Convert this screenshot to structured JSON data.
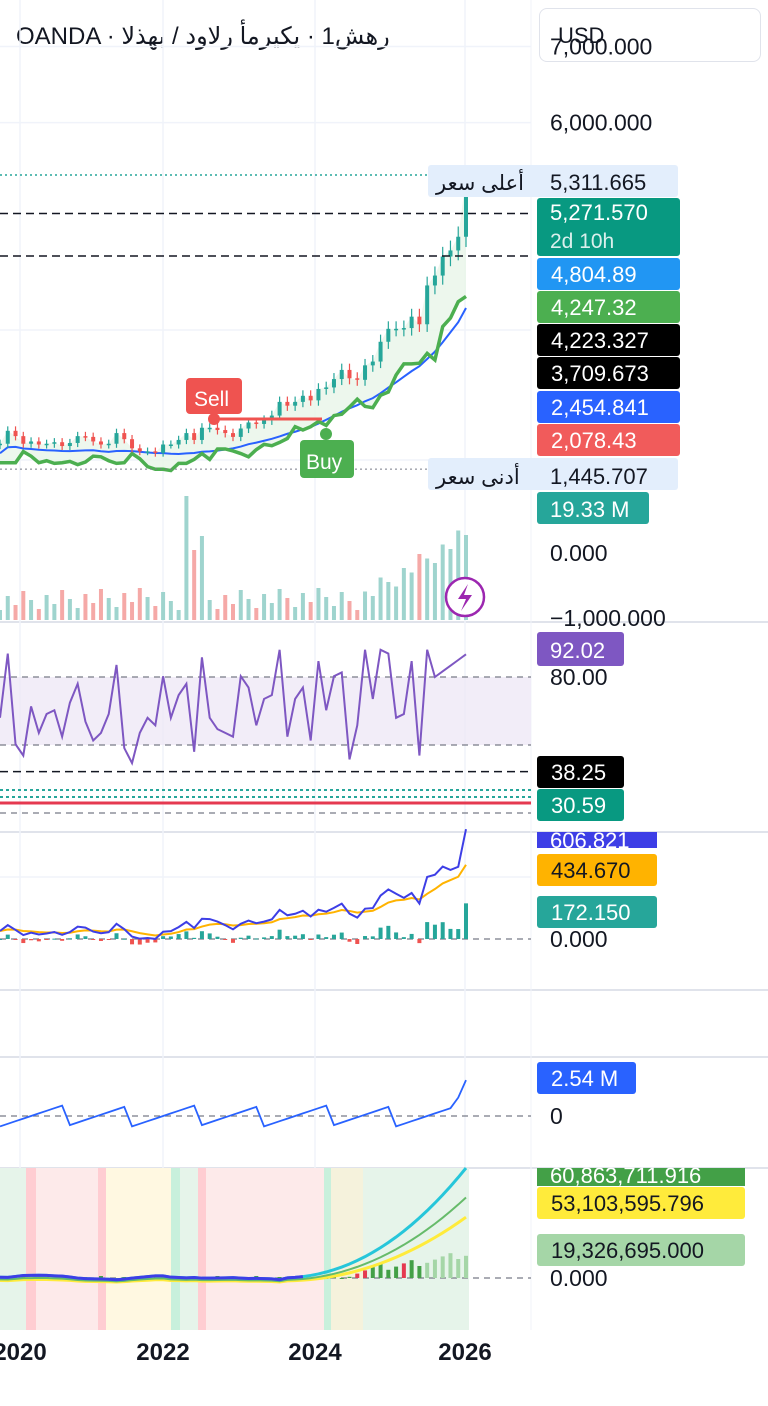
{
  "header": {
    "title": "OANDA · رهش1 · يكيرمأ رلاود / بهذلا"
  },
  "currency_button": {
    "label": "USD"
  },
  "colors": {
    "up": "#26a69a",
    "down": "#ef5350",
    "green_line": "#4caf50",
    "blue_line": "#2962ff",
    "rsi": "#7e57c2",
    "macd": "#2962ff",
    "signal": "#ff9800",
    "dark": "#131722"
  },
  "main_pane": {
    "axis_ticks": [
      "7,000.000",
      "6,000.000"
    ],
    "axis_values": [
      7000,
      6000
    ],
    "labels": {
      "high_text": "أعلى سعر",
      "high": "5,311.665",
      "last": "5,271.570",
      "countdown": "2d 10h",
      "l1": "4,804.89",
      "l2": "4,247.32",
      "l3": "4,223.327",
      "l4": "3,709.673",
      "l5": "2,454.841",
      "l6": "2,078.43",
      "low_text": "أدنى سعر",
      "low": "1,445.707"
    },
    "levels": {
      "l1": 4804.89,
      "l2": 4247.32,
      "low": 1445.707,
      "high": 5311.665
    },
    "signals": {
      "sell": "Sell",
      "buy": "Buy"
    }
  },
  "volume_pane": {
    "last_label": "19.33 M",
    "axis_ticks": [
      "0.000",
      "−1,000.000"
    ],
    "icon": "lightning-bolt-icon"
  },
  "rsi_pane": {
    "value": "92.02",
    "axis_tick": "80.00",
    "band_upper": 80,
    "band_lower": 50,
    "lvl_a_label": "38.25",
    "lvl_b_label": "30.59",
    "lvl_a": 38.25,
    "lvl_b": 30.59
  },
  "macd_pane": {
    "macd_label": "606.821",
    "signal_label": "434.670",
    "hist_label": "172.150",
    "zero_label": "0.000"
  },
  "obv_pane": {
    "label": "2.54 M",
    "zero_label": "0"
  },
  "vol_osc_pane": {
    "v1_label": "60,863,711.916",
    "v2_label": "53,103,595.796",
    "v3_label": "19,326,695.000",
    "zero_label": "0.000"
  },
  "x_axis": {
    "labels": [
      "2020",
      "2022",
      "2024",
      "2026"
    ]
  },
  "chart_data": {
    "type": "line",
    "title": "",
    "x_range": [
      "2020",
      "2026"
    ],
    "monthly_close": [
      1780,
      1950,
      1880,
      1780,
      1810,
      1770,
      1780,
      1800,
      1750,
      1790,
      1880,
      1870,
      1810,
      1770,
      1780,
      1920,
      1840,
      1720,
      1680,
      1680,
      1660,
      1770,
      1770,
      1830,
      1920,
      1830,
      1990,
      1990,
      1960,
      1920,
      1870,
      1980,
      2060,
      2040,
      2090,
      2150,
      2330,
      2280,
      2330,
      2410,
      2350,
      2500,
      2520,
      2630,
      2750,
      2640,
      2620,
      2810,
      2860,
      3120,
      3290,
      3290,
      3300,
      3450,
      3350,
      3860,
      3990,
      4240,
      4320,
      4500,
      5271.57
    ],
    "series": [
      {
        "name": "",
        "values": "monthly_close"
      }
    ],
    "ylim": [
      1000,
      7000
    ]
  }
}
